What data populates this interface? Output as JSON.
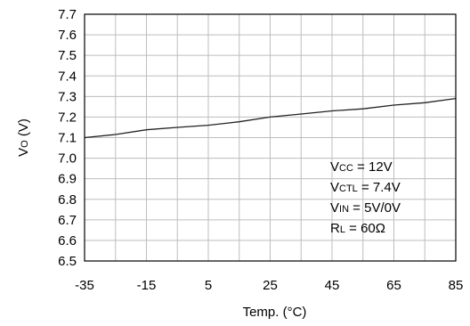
{
  "chart_data": {
    "type": "line",
    "xlabel": "Temp. (°C)",
    "ylabel": {
      "main": "V",
      "sub": "O",
      "rest": " (V)"
    },
    "xlim": [
      -35,
      85
    ],
    "ylim": [
      6.5,
      7.7
    ],
    "x_ticks": [
      -35,
      -15,
      5,
      25,
      45,
      65,
      85
    ],
    "y_ticks": [
      "6.5",
      "6.6",
      "6.7",
      "6.8",
      "6.9",
      "7.0",
      "7.1",
      "7.2",
      "7.3",
      "7.4",
      "7.5",
      "7.6",
      "7.7"
    ],
    "x_grid_step": 10,
    "grid": true,
    "series": [
      {
        "x": [
          -35,
          -25,
          -15,
          -5,
          5,
          15,
          25,
          35,
          45,
          55,
          65,
          75,
          85
        ],
        "y": [
          7.1,
          7.115,
          7.138,
          7.15,
          7.16,
          7.177,
          7.2,
          7.215,
          7.23,
          7.24,
          7.258,
          7.27,
          7.29
        ]
      }
    ],
    "annotations": [
      {
        "main": "V",
        "sub": "CC",
        "rest": " = 12V"
      },
      {
        "main": "V",
        "sub": "CTL",
        "rest": " = 7.4V"
      },
      {
        "main": "V",
        "sub": "IN",
        "rest": " = 5V/0V"
      },
      {
        "main": "R",
        "sub": "L",
        "rest": " = 60Ω"
      }
    ]
  }
}
